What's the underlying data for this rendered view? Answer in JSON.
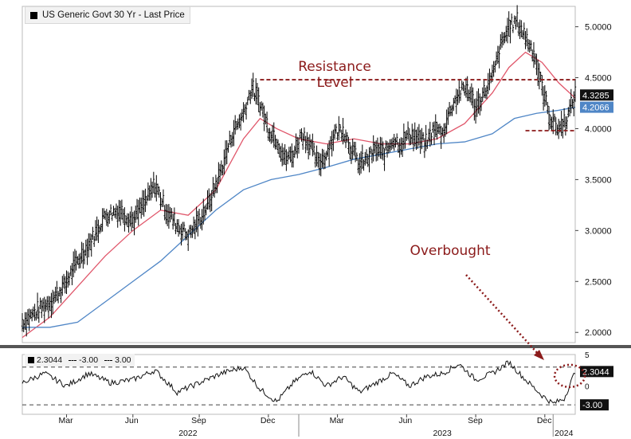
{
  "legend": {
    "main": "US Generic Govt 30 Yr - Last Price"
  },
  "sub_legend": {
    "value": "2.3044",
    "upper": "-3.00",
    "lower": "3.00"
  },
  "annotations": {
    "resistance": [
      "Resistance",
      "Level"
    ],
    "overbought": "Overbought"
  },
  "colors": {
    "price": "#000000",
    "ma_fast": "#e0566a",
    "ma_slow": "#4f86c6",
    "annotation": "#8b1a1a",
    "resistance_line": "#8b1a1a"
  },
  "chart_data": [
    {
      "type": "line",
      "title": "US Generic Govt 30 Yr - Last Price",
      "y_ticks": [
        "2.0000",
        "2.5000",
        "3.0000",
        "3.5000",
        "4.0000",
        "4.5000",
        "5.0000"
      ],
      "ylim": [
        1.9,
        5.2
      ],
      "x_months": [
        "Mar",
        "Jun",
        "Sep",
        "Dec",
        "Mar",
        "Jun",
        "Sep",
        "Dec"
      ],
      "x_years": [
        "2022",
        "2023",
        "2024"
      ],
      "last_labels": [
        {
          "value": "4.3285",
          "series": "price"
        },
        {
          "value": "4.2066",
          "series": "ma_slow"
        }
      ],
      "resistance_level": 4.48,
      "support_level": 3.98,
      "series": [
        {
          "key": "price",
          "points": [
            [
              0,
              2.1
            ],
            [
              5,
              2.2
            ],
            [
              10,
              2.3
            ],
            [
              15,
              2.45
            ],
            [
              20,
              2.7
            ],
            [
              25,
              2.9
            ],
            [
              30,
              3.15
            ],
            [
              35,
              3.2
            ],
            [
              40,
              3.1
            ],
            [
              45,
              3.3
            ],
            [
              48,
              3.45
            ],
            [
              52,
              3.2
            ],
            [
              56,
              3.05
            ],
            [
              60,
              2.95
            ],
            [
              64,
              3.1
            ],
            [
              68,
              3.3
            ],
            [
              72,
              3.6
            ],
            [
              76,
              3.95
            ],
            [
              80,
              4.15
            ],
            [
              83,
              4.4
            ],
            [
              86,
              4.25
            ],
            [
              89,
              4.0
            ],
            [
              92,
              3.9
            ],
            [
              95,
              3.7
            ],
            [
              98,
              3.75
            ],
            [
              101,
              3.95
            ],
            [
              104,
              3.85
            ],
            [
              107,
              3.65
            ],
            [
              110,
              3.75
            ],
            [
              113,
              3.95
            ],
            [
              116,
              4.0
            ],
            [
              119,
              3.8
            ],
            [
              122,
              3.65
            ],
            [
              125,
              3.7
            ],
            [
              128,
              3.8
            ],
            [
              131,
              3.75
            ],
            [
              134,
              3.9
            ],
            [
              137,
              3.85
            ],
            [
              140,
              3.95
            ],
            [
              143,
              3.9
            ],
            [
              146,
              3.85
            ],
            [
              149,
              4.0
            ],
            [
              152,
              3.95
            ],
            [
              155,
              4.2
            ],
            [
              158,
              4.35
            ],
            [
              161,
              4.4
            ],
            [
              164,
              4.2
            ],
            [
              167,
              4.35
            ],
            [
              170,
              4.5
            ],
            [
              173,
              4.8
            ],
            [
              176,
              5.0
            ],
            [
              179,
              5.05
            ],
            [
              182,
              4.9
            ],
            [
              185,
              4.75
            ],
            [
              188,
              4.4
            ],
            [
              191,
              4.1
            ],
            [
              194,
              4.0
            ],
            [
              197,
              4.1
            ],
            [
              200,
              4.33
            ]
          ]
        },
        {
          "key": "ma_fast",
          "points": [
            [
              0,
              1.95
            ],
            [
              10,
              2.15
            ],
            [
              20,
              2.45
            ],
            [
              30,
              2.75
            ],
            [
              40,
              3.0
            ],
            [
              50,
              3.2
            ],
            [
              60,
              3.15
            ],
            [
              70,
              3.4
            ],
            [
              80,
              3.9
            ],
            [
              86,
              4.1
            ],
            [
              92,
              4.0
            ],
            [
              100,
              3.9
            ],
            [
              110,
              3.85
            ],
            [
              120,
              3.9
            ],
            [
              130,
              3.85
            ],
            [
              140,
              3.85
            ],
            [
              150,
              3.9
            ],
            [
              160,
              4.05
            ],
            [
              170,
              4.35
            ],
            [
              176,
              4.6
            ],
            [
              182,
              4.75
            ],
            [
              188,
              4.65
            ],
            [
              194,
              4.45
            ],
            [
              200,
              4.3
            ]
          ]
        },
        {
          "key": "ma_slow",
          "points": [
            [
              0,
              2.05
            ],
            [
              10,
              2.05
            ],
            [
              20,
              2.1
            ],
            [
              30,
              2.3
            ],
            [
              40,
              2.5
            ],
            [
              50,
              2.7
            ],
            [
              60,
              2.95
            ],
            [
              70,
              3.2
            ],
            [
              80,
              3.4
            ],
            [
              90,
              3.5
            ],
            [
              100,
              3.55
            ],
            [
              110,
              3.62
            ],
            [
              120,
              3.7
            ],
            [
              130,
              3.75
            ],
            [
              140,
              3.8
            ],
            [
              150,
              3.85
            ],
            [
              160,
              3.87
            ],
            [
              170,
              3.95
            ],
            [
              178,
              4.1
            ],
            [
              186,
              4.15
            ],
            [
              194,
              4.18
            ],
            [
              200,
              4.21
            ]
          ]
        }
      ]
    },
    {
      "type": "line",
      "y_ticks": [
        "5",
        "0"
      ],
      "ylim": [
        -4.5,
        5
      ],
      "thresholds": [
        3,
        -3
      ],
      "last_labels": [
        {
          "value": "2.3044"
        },
        {
          "value": "-3.00"
        }
      ],
      "series": [
        {
          "key": "oscillator",
          "points": [
            [
              0,
              0.5
            ],
            [
              8,
              2.0
            ],
            [
              16,
              0.0
            ],
            [
              24,
              2.0
            ],
            [
              32,
              0.5
            ],
            [
              40,
              1.0
            ],
            [
              48,
              2.5
            ],
            [
              56,
              -1.0
            ],
            [
              64,
              0.5
            ],
            [
              72,
              2.0
            ],
            [
              80,
              3.0
            ],
            [
              86,
              -0.5
            ],
            [
              92,
              -2.5
            ],
            [
              98,
              0.5
            ],
            [
              104,
              2.5
            ],
            [
              110,
              0.0
            ],
            [
              116,
              1.5
            ],
            [
              122,
              -1.0
            ],
            [
              128,
              0.5
            ],
            [
              134,
              2.0
            ],
            [
              140,
              0.0
            ],
            [
              146,
              1.5
            ],
            [
              152,
              2.0
            ],
            [
              158,
              3.5
            ],
            [
              164,
              1.0
            ],
            [
              170,
              2.0
            ],
            [
              176,
              3.8
            ],
            [
              182,
              1.0
            ],
            [
              188,
              -1.5
            ],
            [
              192,
              -2.8
            ],
            [
              196,
              -2.0
            ],
            [
              200,
              2.3
            ]
          ]
        }
      ]
    }
  ]
}
